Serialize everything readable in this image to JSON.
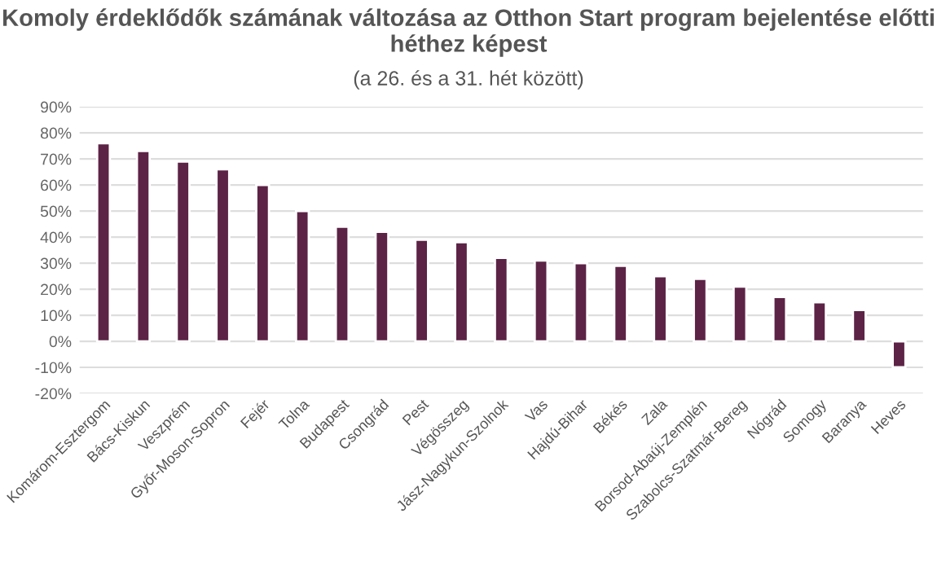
{
  "chart_data": {
    "type": "bar",
    "title": "Komoly érdeklődők számának változása az Otthon Start program bejelentése előtti héthez képest",
    "subtitle": "(a 26. és a 31. hét között)",
    "categories": [
      "Komárom-Esztergom",
      "Bács-Kiskun",
      "Veszprém",
      "Győr-Moson-Sopron",
      "Fejér",
      "Tolna",
      "Budapest",
      "Csongrád",
      "Pest",
      "Végösszeg",
      "Jász-Nagykun-Szolnok",
      "Vas",
      "Hajdú-Bihar",
      "Békés",
      "Zala",
      "Borsod-Abaúj-Zemplén",
      "Szabolcs-Szatmár-Bereg",
      "Nógrád",
      "Somogy",
      "Baranya",
      "Heves"
    ],
    "values": [
      76,
      73,
      69,
      66,
      60,
      50,
      44,
      42,
      39,
      38,
      32,
      31,
      30,
      29,
      25,
      24,
      21,
      17,
      15,
      12,
      -10
    ],
    "color": "#5c2346",
    "ylim": [
      -20,
      90
    ],
    "yticks": [
      {
        "value": -20,
        "label": "-20%"
      },
      {
        "value": -10,
        "label": "-10%"
      },
      {
        "value": 0,
        "label": "0%"
      },
      {
        "value": 10,
        "label": "10%"
      },
      {
        "value": 20,
        "label": "20%"
      },
      {
        "value": 30,
        "label": "30%"
      },
      {
        "value": 40,
        "label": "40%"
      },
      {
        "value": 50,
        "label": "50%"
      },
      {
        "value": 60,
        "label": "60%"
      },
      {
        "value": 70,
        "label": "70%"
      },
      {
        "value": 80,
        "label": "80%"
      },
      {
        "value": 90,
        "label": "90%"
      }
    ],
    "grid": "y",
    "legend": false
  }
}
